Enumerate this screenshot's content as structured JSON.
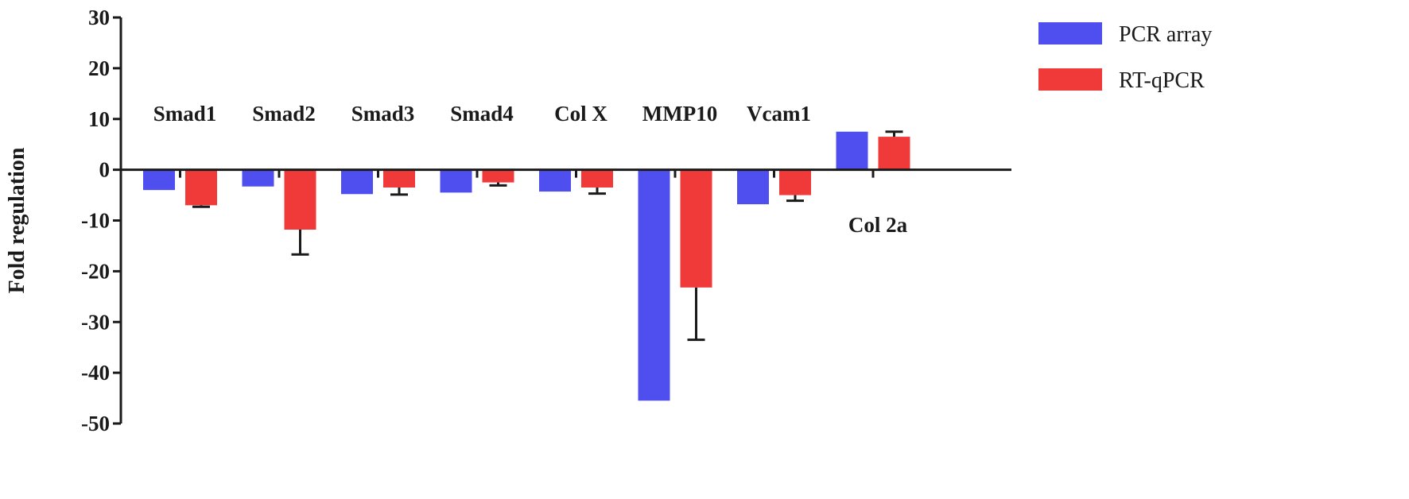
{
  "chart_data": {
    "type": "bar",
    "title": "",
    "xlabel": "",
    "ylabel": "Fold regulation",
    "ylim": [
      -50,
      30
    ],
    "yticks": [
      30,
      20,
      10,
      0,
      -10,
      -20,
      -30,
      -40,
      -50
    ],
    "grid": false,
    "legend_position": "top-right",
    "categories": [
      "Smad1",
      "Smad2",
      "Smad3",
      "Smad4",
      "Col X",
      "MMP10",
      "Vcam1",
      "Col 2a"
    ],
    "series": [
      {
        "name": "PCR array",
        "color": "#4f4ff0",
        "values": [
          -4,
          -3.3,
          -4.8,
          -4.5,
          -4.3,
          -45.5,
          -6.8,
          7.5
        ],
        "errors": [
          null,
          null,
          null,
          null,
          null,
          null,
          null,
          null
        ]
      },
      {
        "name": "RT-qPCR",
        "color": "#f03a3a",
        "values": [
          -7,
          -11.8,
          -3.5,
          -2.5,
          -3.5,
          -23.2,
          -5,
          6.5
        ],
        "errors": [
          0.3,
          4.9,
          1.4,
          0.6,
          1.2,
          10.3,
          1.1,
          1
        ]
      }
    ]
  }
}
